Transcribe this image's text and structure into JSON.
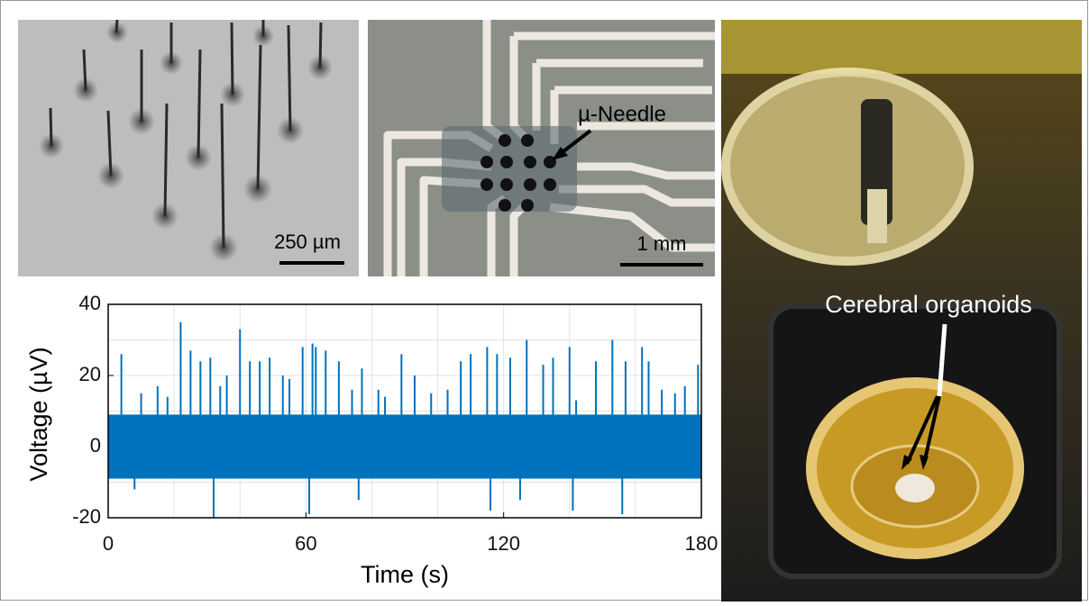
{
  "panels": {
    "sem": {
      "scale_label": "250 µm"
    },
    "microscope": {
      "annotation": "µ-Needle",
      "scale_label": "1 mm"
    },
    "photo": {
      "annotation": "Cerebral organoids"
    }
  },
  "chart_data": {
    "type": "line",
    "xlabel": "Time (s)",
    "ylabel": "Voltage (µV)",
    "xlim": [
      0,
      180
    ],
    "ylim": [
      -20,
      40
    ],
    "xticks": [
      0,
      60,
      120,
      180
    ],
    "yticks": [
      -20,
      0,
      20,
      40
    ],
    "grid": true,
    "xgrid": [
      20,
      40,
      60,
      80,
      100,
      120,
      140,
      160
    ],
    "ygrid": [
      -10,
      10,
      20,
      30
    ],
    "noise_band": [
      -9,
      9
    ],
    "series": [
      {
        "color": "#0072bd",
        "x": [
          4,
          8,
          10,
          15,
          18,
          22,
          25,
          28,
          31,
          32,
          34,
          36,
          40,
          43,
          46,
          49,
          53,
          55,
          59,
          61,
          62,
          63,
          66,
          70,
          74,
          76,
          77,
          82,
          84,
          89,
          93,
          98,
          103,
          107,
          110,
          115,
          116,
          118,
          122,
          125,
          127,
          132,
          135,
          140,
          141,
          142,
          148,
          153,
          156,
          157,
          162,
          164,
          168,
          172,
          175,
          179
        ],
        "values": [
          26,
          -12,
          15,
          17,
          14,
          35,
          27,
          24,
          25,
          -20,
          17,
          20,
          33,
          24,
          24,
          25,
          20,
          19,
          28,
          -19,
          29,
          28,
          27,
          24,
          16,
          -15,
          22,
          16,
          14,
          26,
          20,
          15,
          16,
          24,
          26,
          28,
          -18,
          26,
          25,
          -15,
          30,
          23,
          25,
          28,
          -18,
          13,
          24,
          30,
          -19,
          24,
          28,
          24,
          16,
          15,
          17,
          23
        ]
      }
    ]
  }
}
